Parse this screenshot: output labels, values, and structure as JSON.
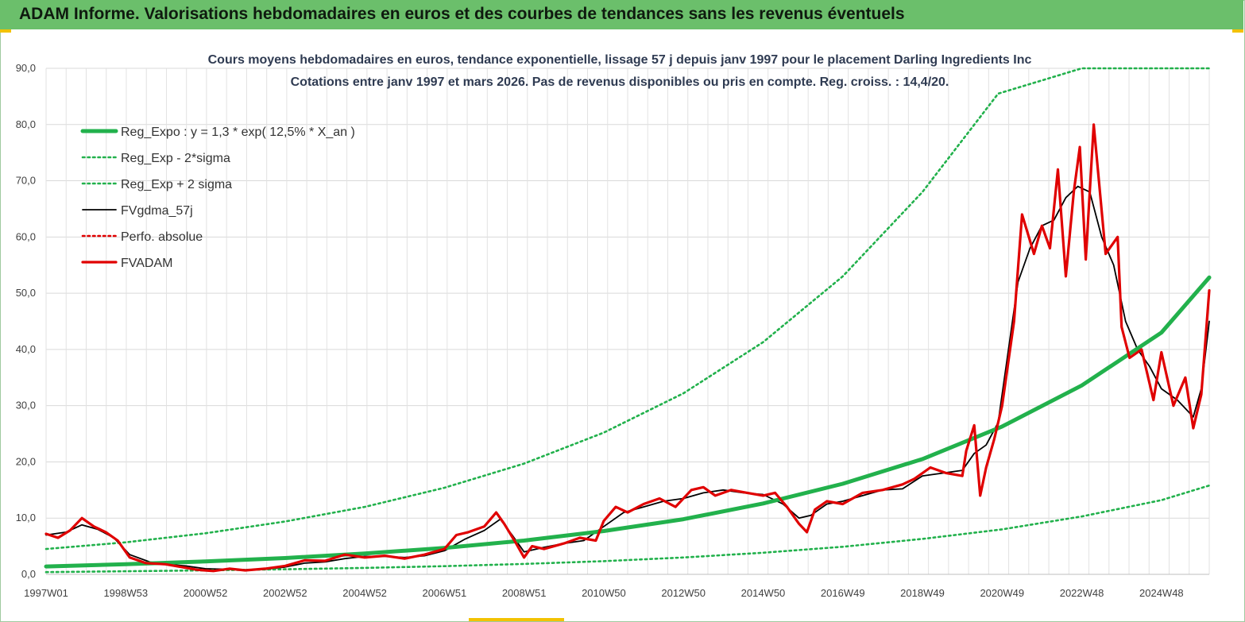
{
  "header": {
    "title": "ADAM Informe. Valorisations hebdomadaires en euros et des courbes de tendances sans les revenus éventuels"
  },
  "chart_data": {
    "type": "line",
    "title": "Cours moyens hebdomadaires en euros, tendance exponentielle, lissage 57 j depuis janv 1997 pour le placement Darling Ingredients Inc",
    "subtitle": "Cotations entre janv 1997 et mars 2026. Pas de revenus disponibles ou pris en compte. Reg. croiss. : 14,4/20.",
    "xlabel": "",
    "ylabel": "",
    "x_range": [
      1997.0,
      2026.2
    ],
    "ylim": [
      0,
      90
    ],
    "y_ticks": [
      "0,0",
      "10,0",
      "20,0",
      "30,0",
      "40,0",
      "50,0",
      "60,0",
      "70,0",
      "80,0",
      "90,0"
    ],
    "x_ticks": [
      {
        "label": "1997W01",
        "x": 1997.0
      },
      {
        "label": "1998W53",
        "x": 1999.0
      },
      {
        "label": "2000W52",
        "x": 2001.0
      },
      {
        "label": "2002W52",
        "x": 2003.0
      },
      {
        "label": "2004W52",
        "x": 2005.0
      },
      {
        "label": "2006W51",
        "x": 2007.0
      },
      {
        "label": "2008W51",
        "x": 2009.0
      },
      {
        "label": "2010W50",
        "x": 2011.0
      },
      {
        "label": "2012W50",
        "x": 2013.0
      },
      {
        "label": "2014W50",
        "x": 2015.0
      },
      {
        "label": "2016W49",
        "x": 2017.0
      },
      {
        "label": "2018W49",
        "x": 2019.0
      },
      {
        "label": "2020W49",
        "x": 2021.0
      },
      {
        "label": "2022W48",
        "x": 2023.0
      },
      {
        "label": "2024W48",
        "x": 2025.0
      }
    ],
    "grid": true,
    "legend_position": "top-left",
    "series": [
      {
        "name": "Reg_Expo : y = 1,3 * exp( 12,5% *  X_an )",
        "style": "thick-solid",
        "color": "#22b14c",
        "x": [
          1997,
          1999,
          2001,
          2003,
          2005,
          2007,
          2009,
          2011,
          2013,
          2015,
          2017,
          2019,
          2021,
          2023,
          2025,
          2026.2
        ],
        "values": [
          1.4,
          1.8,
          2.3,
          2.9,
          3.7,
          4.7,
          6.0,
          7.7,
          9.8,
          12.6,
          16.1,
          20.5,
          26.3,
          33.6,
          43.0,
          52.8
        ]
      },
      {
        "name": "Reg_Exp - 2*sigma",
        "style": "dotted",
        "color": "#22b14c",
        "x": [
          1997,
          1999,
          2001,
          2003,
          2005,
          2007,
          2009,
          2011,
          2013,
          2015,
          2017,
          2019,
          2021,
          2023,
          2025,
          2026.2
        ],
        "values": [
          0.4,
          0.55,
          0.7,
          0.9,
          1.15,
          1.45,
          1.85,
          2.35,
          3.0,
          3.85,
          4.9,
          6.3,
          8.0,
          10.3,
          13.2,
          15.8
        ]
      },
      {
        "name": "Reg_Exp + 2 sigma",
        "style": "dotted",
        "color": "#22b14c",
        "x": [
          1997,
          1999,
          2001,
          2003,
          2005,
          2007,
          2009,
          2011,
          2013,
          2015,
          2017,
          2019,
          2020.9,
          2023.0,
          2026.2
        ],
        "values": [
          4.5,
          5.7,
          7.3,
          9.4,
          12.0,
          15.4,
          19.7,
          25.2,
          32.2,
          41.3,
          53.0,
          68.0,
          85.5,
          90,
          90
        ]
      },
      {
        "name": "FVgdma_57j",
        "style": "thin-solid",
        "color": "#000000",
        "x": [
          1997.0,
          1997.5,
          1997.9,
          1998.3,
          1998.7,
          1999.1,
          1999.6,
          2000.0,
          2000.5,
          2001.0,
          2001.5,
          2002.0,
          2002.5,
          2003.0,
          2003.5,
          2004.0,
          2004.5,
          2005.0,
          2005.5,
          2006.0,
          2006.5,
          2007.0,
          2007.5,
          2008.0,
          2008.4,
          2008.7,
          2009.0,
          2009.5,
          2010.0,
          2010.5,
          2011.0,
          2011.5,
          2012.0,
          2012.5,
          2013.0,
          2013.5,
          2014.0,
          2014.5,
          2015.0,
          2015.5,
          2015.9,
          2016.2,
          2016.6,
          2017.0,
          2017.5,
          2018.0,
          2018.5,
          2019.0,
          2019.5,
          2020.0,
          2020.3,
          2020.6,
          2020.9,
          2021.1,
          2021.4,
          2021.7,
          2022.0,
          2022.3,
          2022.6,
          2022.9,
          2023.2,
          2023.5,
          2023.8,
          2024.1,
          2024.4,
          2024.7,
          2025.0,
          2025.4,
          2025.8,
          2026.0,
          2026.2
        ],
        "values": [
          7.0,
          7.5,
          8.8,
          8.0,
          6.5,
          3.5,
          2.2,
          1.8,
          1.5,
          1.0,
          0.9,
          0.8,
          0.9,
          1.3,
          2.0,
          2.2,
          2.8,
          3.2,
          3.2,
          3.0,
          3.3,
          4.2,
          6.2,
          7.8,
          9.8,
          7.0,
          4.0,
          4.8,
          5.5,
          6.0,
          8.5,
          11.0,
          12.0,
          13.0,
          13.5,
          14.5,
          15.0,
          14.5,
          14.2,
          12.5,
          10.0,
          10.5,
          12.5,
          13.0,
          14.0,
          15.0,
          15.2,
          17.5,
          18.0,
          18.5,
          21.5,
          23.0,
          27.0,
          37.0,
          52.0,
          58.0,
          62.0,
          63.0,
          67.0,
          69.0,
          68.0,
          60.0,
          55.0,
          45.0,
          40.0,
          37.0,
          33.0,
          31.0,
          28.0,
          33.0,
          45.0
        ]
      },
      {
        "name": "Perfo. absolue",
        "style": "dotted",
        "color": "#e00000",
        "x": [],
        "values": []
      },
      {
        "name": "FVADAM",
        "style": "thick-solid",
        "color": "#e00000",
        "x": [
          1997.0,
          1997.3,
          1997.6,
          1997.9,
          1998.2,
          1998.5,
          1998.8,
          1999.1,
          1999.5,
          2000.0,
          2000.4,
          2000.8,
          2001.2,
          2001.6,
          2002.0,
          2002.5,
          2003.0,
          2003.5,
          2004.0,
          2004.5,
          2005.0,
          2005.5,
          2006.0,
          2006.5,
          2007.0,
          2007.3,
          2007.6,
          2008.0,
          2008.3,
          2008.5,
          2008.8,
          2009.0,
          2009.2,
          2009.5,
          2010.0,
          2010.4,
          2010.8,
          2011.0,
          2011.3,
          2011.6,
          2012.0,
          2012.4,
          2012.8,
          2013.2,
          2013.5,
          2013.8,
          2014.2,
          2014.6,
          2015.0,
          2015.3,
          2015.6,
          2015.9,
          2016.1,
          2016.3,
          2016.6,
          2017.0,
          2017.5,
          2018.0,
          2018.5,
          2018.8,
          2019.2,
          2019.6,
          2020.0,
          2020.1,
          2020.3,
          2020.45,
          2020.6,
          2020.8,
          2021.0,
          2021.3,
          2021.5,
          2021.8,
          2022.0,
          2022.2,
          2022.4,
          2022.6,
          2022.8,
          2022.95,
          2023.1,
          2023.3,
          2023.6,
          2023.9,
          2024.0,
          2024.2,
          2024.5,
          2024.8,
          2025.0,
          2025.3,
          2025.6,
          2025.8,
          2026.0,
          2026.2
        ],
        "values": [
          7.2,
          6.5,
          7.8,
          10.0,
          8.5,
          7.5,
          6.0,
          3.0,
          2.0,
          1.8,
          1.3,
          0.8,
          0.6,
          1.0,
          0.7,
          1.0,
          1.5,
          2.5,
          2.4,
          3.5,
          3.0,
          3.3,
          2.8,
          3.5,
          4.5,
          7.0,
          7.5,
          8.5,
          11.0,
          9.0,
          5.5,
          3.0,
          5.0,
          4.5,
          5.5,
          6.5,
          6.0,
          9.5,
          12.0,
          11.0,
          12.5,
          13.5,
          12.0,
          15.0,
          15.5,
          14.0,
          15.0,
          14.5,
          14.0,
          14.5,
          12.0,
          9.0,
          7.5,
          11.5,
          13.0,
          12.5,
          14.5,
          15.0,
          16.0,
          17.0,
          19.0,
          18.0,
          17.5,
          22.0,
          26.5,
          14.0,
          19.0,
          24.0,
          30.0,
          45.0,
          64.0,
          57.0,
          62.0,
          58.0,
          72.0,
          53.0,
          68.0,
          76.0,
          56.0,
          80.0,
          57.0,
          60.0,
          44.0,
          38.5,
          40.0,
          31.0,
          39.5,
          30.0,
          35.0,
          26.0,
          32.0,
          50.5
        ]
      }
    ]
  }
}
